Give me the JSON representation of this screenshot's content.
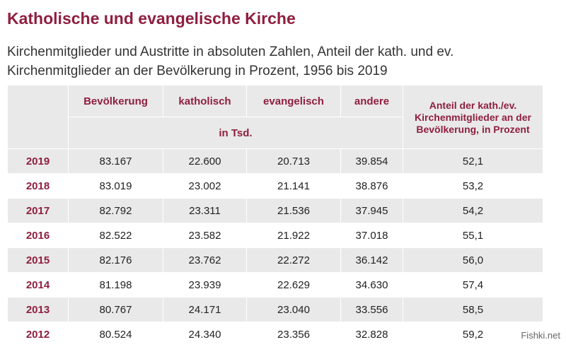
{
  "title": "Katholische und evangelische Kirche",
  "subtitle": "Kirchenmitglieder und Austritte in absoluten Zahlen, Anteil der kath. und ev. Kirchenmitglieder an der Bevölkerung in Prozent, 1956 bis 2019",
  "table": {
    "headers": {
      "bevoelkerung": "Bevölkerung",
      "katholisch": "katholisch",
      "evangelisch": "evangelisch",
      "andere": "andere",
      "anteil": "Anteil der kath./ev. Kirchenmitglieder an der Bevölkerung, in Prozent",
      "unit": "in Tsd."
    },
    "rows": [
      {
        "year": "2019",
        "bevoelkerung": "83.167",
        "katholisch": "22.600",
        "evangelisch": "20.713",
        "andere": "39.854",
        "anteil": "52,1"
      },
      {
        "year": "2018",
        "bevoelkerung": "83.019",
        "katholisch": "23.002",
        "evangelisch": "21.141",
        "andere": "38.876",
        "anteil": "53,2"
      },
      {
        "year": "2017",
        "bevoelkerung": "82.792",
        "katholisch": "23.311",
        "evangelisch": "21.536",
        "andere": "37.945",
        "anteil": "54,2"
      },
      {
        "year": "2016",
        "bevoelkerung": "82.522",
        "katholisch": "23.582",
        "evangelisch": "21.922",
        "andere": "37.018",
        "anteil": "55,1"
      },
      {
        "year": "2015",
        "bevoelkerung": "82.176",
        "katholisch": "23.762",
        "evangelisch": "22.272",
        "andere": "36.142",
        "anteil": "56,0"
      },
      {
        "year": "2014",
        "bevoelkerung": "81.198",
        "katholisch": "23.939",
        "evangelisch": "22.629",
        "andere": "34.630",
        "anteil": "57,4"
      },
      {
        "year": "2013",
        "bevoelkerung": "80.767",
        "katholisch": "24.171",
        "evangelisch": "23.040",
        "andere": "33.556",
        "anteil": "58,5"
      },
      {
        "year": "2012",
        "bevoelkerung": "80.524",
        "katholisch": "24.340",
        "evangelisch": "23.356",
        "andere": "32.828",
        "anteil": "59,2"
      }
    ]
  },
  "watermark": "Fishki.net",
  "colors": {
    "accent": "#8f1f3f",
    "stripe": "#e9e9e9",
    "text": "#222222"
  }
}
